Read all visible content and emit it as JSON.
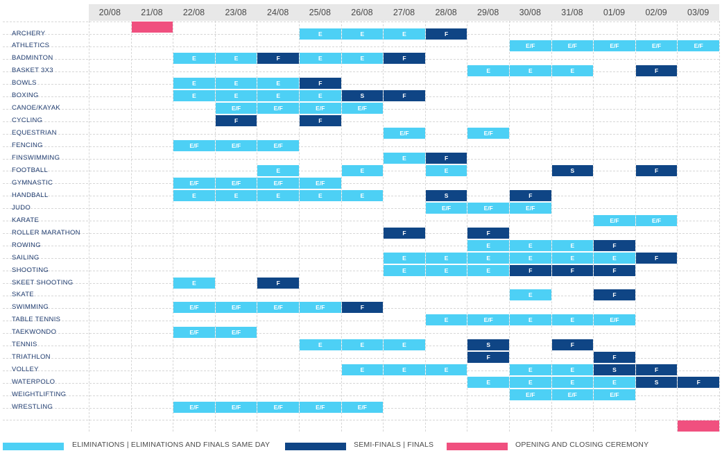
{
  "colors": {
    "elimination": "#4dd0f5",
    "final": "#0f4585",
    "ceremony": "#f0507f"
  },
  "dates": [
    "20/08",
    "21/08",
    "22/08",
    "23/08",
    "24/08",
    "25/08",
    "26/08",
    "27/08",
    "28/08",
    "29/08",
    "30/08",
    "31/08",
    "01/09",
    "02/09",
    "03/09"
  ],
  "ceremonies": [
    {
      "day": 1
    },
    {
      "day": 14
    }
  ],
  "sports": [
    {
      "name": "ARCHERY",
      "cells": [
        [
          5,
          "E",
          "E"
        ],
        [
          6,
          "E",
          "E"
        ],
        [
          7,
          "E",
          "E"
        ],
        [
          8,
          "F",
          "F"
        ]
      ]
    },
    {
      "name": "ATHLETICS",
      "cells": [
        [
          10,
          "E",
          "E/F"
        ],
        [
          11,
          "E",
          "E/F"
        ],
        [
          12,
          "E",
          "E/F"
        ],
        [
          13,
          "E",
          "E/F"
        ],
        [
          14,
          "E",
          "E/F"
        ]
      ]
    },
    {
      "name": "BADMINTON",
      "cells": [
        [
          2,
          "E",
          "E"
        ],
        [
          3,
          "E",
          "E"
        ],
        [
          4,
          "F",
          "F"
        ],
        [
          5,
          "E",
          "E"
        ],
        [
          6,
          "E",
          "E"
        ],
        [
          7,
          "F",
          "F"
        ]
      ]
    },
    {
      "name": "BASKET 3X3",
      "cells": [
        [
          9,
          "E",
          "E"
        ],
        [
          10,
          "E",
          "E"
        ],
        [
          11,
          "E",
          "E"
        ],
        [
          13,
          "F",
          "F"
        ]
      ]
    },
    {
      "name": "BOWLS",
      "cells": [
        [
          2,
          "E",
          "E"
        ],
        [
          3,
          "E",
          "E"
        ],
        [
          4,
          "E",
          "E"
        ],
        [
          5,
          "F",
          "F"
        ]
      ]
    },
    {
      "name": "BOXING",
      "cells": [
        [
          2,
          "E",
          "E"
        ],
        [
          3,
          "E",
          "E"
        ],
        [
          4,
          "E",
          "E"
        ],
        [
          5,
          "E",
          "E"
        ],
        [
          6,
          "F",
          "S"
        ],
        [
          7,
          "F",
          "F"
        ]
      ]
    },
    {
      "name": "CANOE/KAYAK",
      "cells": [
        [
          3,
          "E",
          "E/F"
        ],
        [
          4,
          "E",
          "E/F"
        ],
        [
          5,
          "E",
          "E/F"
        ],
        [
          6,
          "E",
          "E/F"
        ]
      ]
    },
    {
      "name": "CYCLING",
      "cells": [
        [
          3,
          "F",
          "F"
        ],
        [
          5,
          "F",
          "F"
        ]
      ]
    },
    {
      "name": "EQUESTRIAN",
      "cells": [
        [
          7,
          "E",
          "E/F"
        ],
        [
          9,
          "E",
          "E/F"
        ]
      ]
    },
    {
      "name": "FENCING",
      "cells": [
        [
          2,
          "E",
          "E/F"
        ],
        [
          3,
          "E",
          "E/F"
        ],
        [
          4,
          "E",
          "E/F"
        ]
      ]
    },
    {
      "name": "FINSWIMMING",
      "cells": [
        [
          7,
          "E",
          "E"
        ],
        [
          8,
          "F",
          "F"
        ]
      ]
    },
    {
      "name": "FOOTBALL",
      "cells": [
        [
          4,
          "E",
          "E"
        ],
        [
          6,
          "E",
          "E"
        ],
        [
          8,
          "E",
          "E"
        ],
        [
          11,
          "F",
          "S"
        ],
        [
          13,
          "F",
          "F"
        ]
      ]
    },
    {
      "name": "GYMNASTIC",
      "cells": [
        [
          2,
          "E",
          "E/F"
        ],
        [
          3,
          "E",
          "E/F"
        ],
        [
          4,
          "E",
          "E/F"
        ],
        [
          5,
          "E",
          "E/F"
        ]
      ]
    },
    {
      "name": "HANDBALL",
      "cells": [
        [
          2,
          "E",
          "E"
        ],
        [
          3,
          "E",
          "E"
        ],
        [
          4,
          "E",
          "E"
        ],
        [
          5,
          "E",
          "E"
        ],
        [
          6,
          "E",
          "E"
        ],
        [
          8,
          "F",
          "S"
        ],
        [
          10,
          "F",
          "F"
        ]
      ]
    },
    {
      "name": "JUDO",
      "cells": [
        [
          8,
          "E",
          "E/F"
        ],
        [
          9,
          "E",
          "E/F"
        ],
        [
          10,
          "E",
          "E/F"
        ]
      ]
    },
    {
      "name": "KARATE",
      "cells": [
        [
          12,
          "E",
          "E/F"
        ],
        [
          13,
          "E",
          "E/F"
        ]
      ]
    },
    {
      "name": "ROLLER MARATHON",
      "cells": [
        [
          7,
          "F",
          "F"
        ],
        [
          9,
          "F",
          "F"
        ]
      ]
    },
    {
      "name": "ROWING",
      "cells": [
        [
          9,
          "E",
          "E"
        ],
        [
          10,
          "E",
          "E"
        ],
        [
          11,
          "E",
          "E"
        ],
        [
          12,
          "F",
          "F"
        ]
      ]
    },
    {
      "name": "SAILING",
      "cells": [
        [
          7,
          "E",
          "E"
        ],
        [
          8,
          "E",
          "E"
        ],
        [
          9,
          "E",
          "E"
        ],
        [
          10,
          "E",
          "E"
        ],
        [
          11,
          "E",
          "E"
        ],
        [
          12,
          "E",
          "E"
        ],
        [
          13,
          "F",
          "F"
        ]
      ]
    },
    {
      "name": "SHOOTING",
      "cells": [
        [
          7,
          "E",
          "E"
        ],
        [
          8,
          "E",
          "E"
        ],
        [
          9,
          "E",
          "E"
        ],
        [
          10,
          "F",
          "F"
        ],
        [
          11,
          "F",
          "F"
        ],
        [
          12,
          "F",
          "F"
        ]
      ]
    },
    {
      "name": "SKEET SHOOTING",
      "cells": [
        [
          2,
          "E",
          "E"
        ],
        [
          4,
          "F",
          "F"
        ]
      ]
    },
    {
      "name": "SKATE",
      "cells": [
        [
          10,
          "E",
          "E"
        ],
        [
          12,
          "F",
          "F"
        ]
      ]
    },
    {
      "name": "SWIMMING",
      "cells": [
        [
          2,
          "E",
          "E/F"
        ],
        [
          3,
          "E",
          "E/F"
        ],
        [
          4,
          "E",
          "E/F"
        ],
        [
          5,
          "E",
          "E/F"
        ],
        [
          6,
          "F",
          "F"
        ]
      ]
    },
    {
      "name": "TABLE TENNIS",
      "cells": [
        [
          8,
          "E",
          "E"
        ],
        [
          9,
          "E",
          "E/F"
        ],
        [
          10,
          "E",
          "E"
        ],
        [
          11,
          "E",
          "E"
        ],
        [
          12,
          "E",
          "E/F"
        ]
      ]
    },
    {
      "name": "TAEKWONDO",
      "cells": [
        [
          2,
          "E",
          "E/F"
        ],
        [
          3,
          "E",
          "E/F"
        ]
      ]
    },
    {
      "name": "TENNIS",
      "cells": [
        [
          5,
          "E",
          "E"
        ],
        [
          6,
          "E",
          "E"
        ],
        [
          7,
          "E",
          "E"
        ],
        [
          9,
          "F",
          "S"
        ],
        [
          11,
          "F",
          "F"
        ]
      ]
    },
    {
      "name": "TRIATHLON",
      "cells": [
        [
          9,
          "F",
          "F"
        ],
        [
          12,
          "F",
          "F"
        ]
      ]
    },
    {
      "name": "VOLLEY",
      "cells": [
        [
          6,
          "E",
          "E"
        ],
        [
          7,
          "E",
          "E"
        ],
        [
          8,
          "E",
          "E"
        ],
        [
          10,
          "E",
          "E"
        ],
        [
          11,
          "E",
          "E"
        ],
        [
          12,
          "F",
          "S"
        ],
        [
          13,
          "F",
          "F"
        ]
      ]
    },
    {
      "name": "WATERPOLO",
      "cells": [
        [
          9,
          "E",
          "E"
        ],
        [
          10,
          "E",
          "E"
        ],
        [
          11,
          "E",
          "E"
        ],
        [
          12,
          "E",
          "E"
        ],
        [
          13,
          "F",
          "S"
        ],
        [
          14,
          "F",
          "F"
        ]
      ]
    },
    {
      "name": "WEIGHTLIFTING",
      "cells": [
        [
          10,
          "E",
          "E/F"
        ],
        [
          11,
          "E",
          "E/F"
        ],
        [
          12,
          "E",
          "E/F"
        ]
      ]
    },
    {
      "name": "WRESTLING",
      "cells": [
        [
          2,
          "E",
          "E/F"
        ],
        [
          3,
          "E",
          "E/F"
        ],
        [
          4,
          "E",
          "E/F"
        ],
        [
          5,
          "E",
          "E/F"
        ],
        [
          6,
          "E",
          "E/F"
        ]
      ]
    }
  ],
  "legend": [
    {
      "label": "ELIMINATIONS | ELIMINATIONS AND FINALS SAME DAY",
      "type": "E"
    },
    {
      "label": "SEMI-FINALS | FINALS",
      "type": "F"
    },
    {
      "label": "OPENING AND CLOSING CEREMONY",
      "type": "C"
    }
  ]
}
